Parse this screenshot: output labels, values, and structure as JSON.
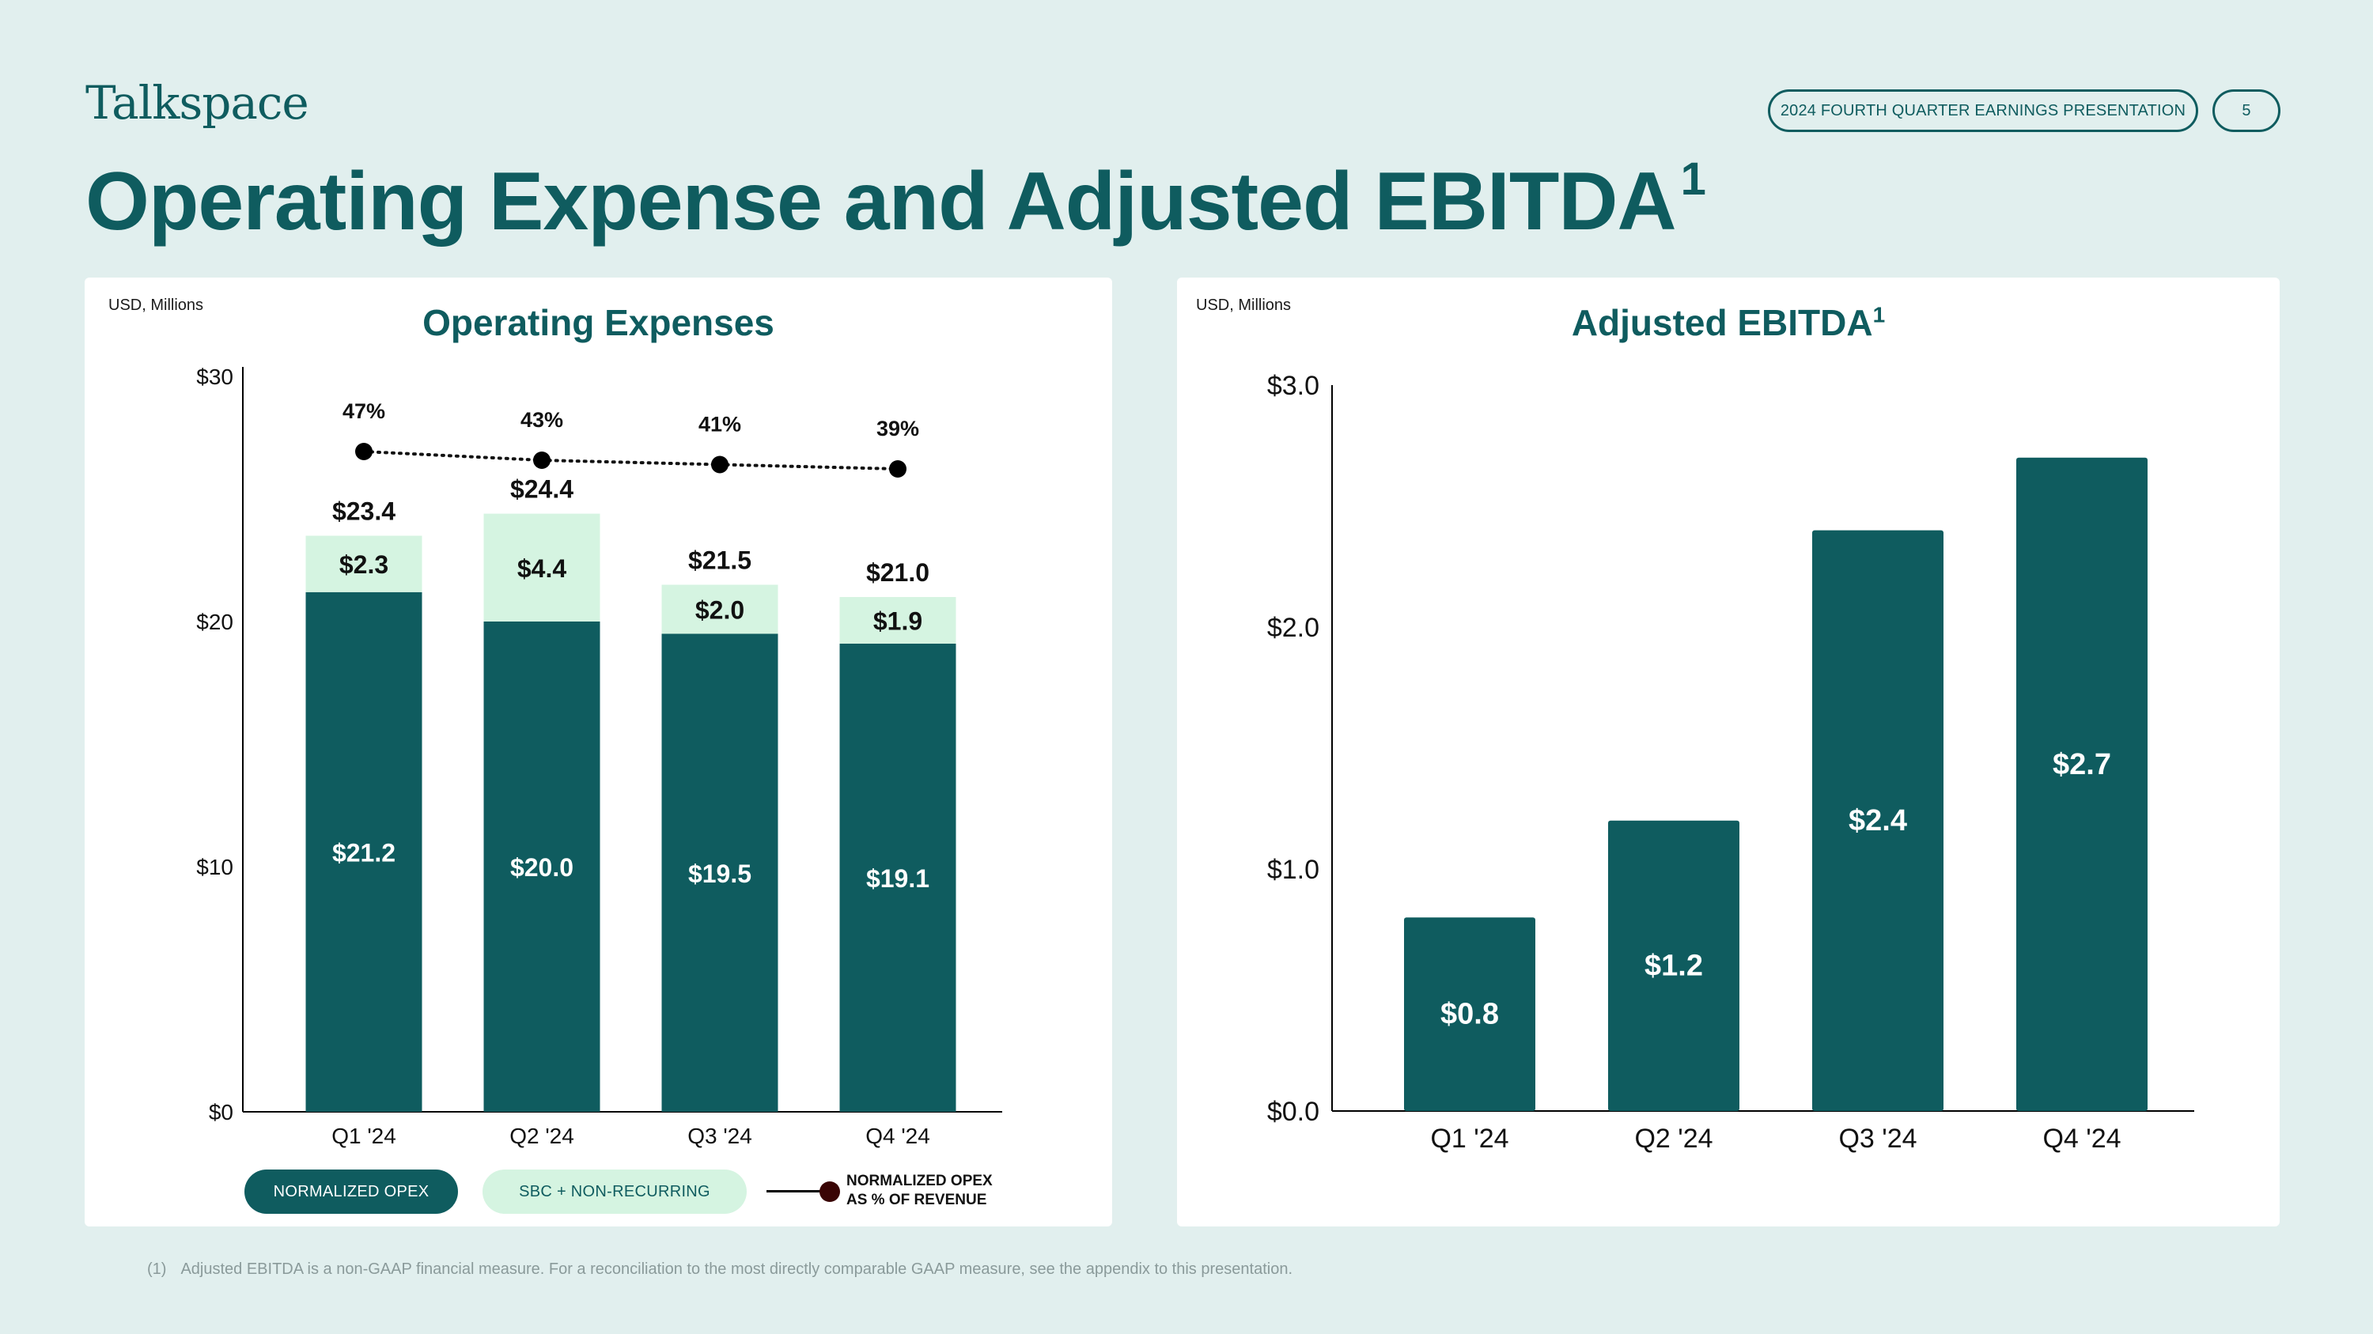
{
  "brand": {
    "logo": "Talkspace"
  },
  "header": {
    "deck_label": "2024 FOURTH QUARTER EARNINGS PRESENTATION",
    "page_number": "5"
  },
  "page_title": {
    "text": "Operating Expense and Adjusted EBITDA",
    "superscript": "1"
  },
  "colors": {
    "primary": "#0f5c5f",
    "light": "#d5f4e1",
    "background": "#e1efee",
    "panel": "#ffffff"
  },
  "legend": {
    "normalized_opex": "NORMALIZED OPEX",
    "sbc_nonrecurring": "SBC + NON-RECURRING",
    "pct_line_1": "NORMALIZED OPEX",
    "pct_line_2": "AS % OF REVENUE"
  },
  "footnote": {
    "marker": "(1)",
    "text": "Adjusted EBITDA is a non-GAAP financial measure. For a reconciliation to the most directly comparable GAAP measure, see the appendix to this presentation."
  },
  "chart_data": [
    {
      "type": "bar",
      "stacked": true,
      "title": "Operating Expenses",
      "units_label": "USD, Millions",
      "categories": [
        "Q1 '24",
        "Q2 '24",
        "Q3 '24",
        "Q4 '24"
      ],
      "ylim": [
        0,
        30
      ],
      "yticks": [
        0,
        10,
        20,
        30
      ],
      "ytick_labels": [
        "$0",
        "$10",
        "$20",
        "$30"
      ],
      "series": [
        {
          "name": "NORMALIZED OPEX",
          "values": [
            21.2,
            20.0,
            19.5,
            19.1
          ],
          "labels": [
            "$21.2",
            "$20.0",
            "$19.5",
            "$19.1"
          ],
          "color": "#0f5c5f"
        },
        {
          "name": "SBC + NON-RECURRING",
          "values": [
            2.3,
            4.4,
            2.0,
            1.9
          ],
          "labels": [
            "$2.3",
            "$4.4",
            "$2.0",
            "$1.9"
          ],
          "color": "#d5f4e1"
        }
      ],
      "totals": [
        23.4,
        24.4,
        21.5,
        21.0
      ],
      "total_labels": [
        "$23.4",
        "$24.4",
        "$21.5",
        "$21.0"
      ],
      "line": {
        "name": "NORMALIZED OPEX AS % OF REVENUE",
        "values": [
          47,
          43,
          41,
          39
        ],
        "labels": [
          "47%",
          "43%",
          "41%",
          "39%"
        ]
      }
    },
    {
      "type": "bar",
      "title": "Adjusted EBITDA",
      "title_superscript": "1",
      "units_label": "USD, Millions",
      "categories": [
        "Q1 '24",
        "Q2 '24",
        "Q3 '24",
        "Q4 '24"
      ],
      "values": [
        0.8,
        1.2,
        2.4,
        2.7
      ],
      "labels": [
        "$0.8",
        "$1.2",
        "$2.4",
        "$2.7"
      ],
      "ylim": [
        0,
        3
      ],
      "yticks": [
        0,
        1,
        2,
        3
      ],
      "ytick_labels": [
        "$0.0",
        "$1.0",
        "$2.0",
        "$3.0"
      ],
      "color": "#0f5c5f"
    }
  ]
}
